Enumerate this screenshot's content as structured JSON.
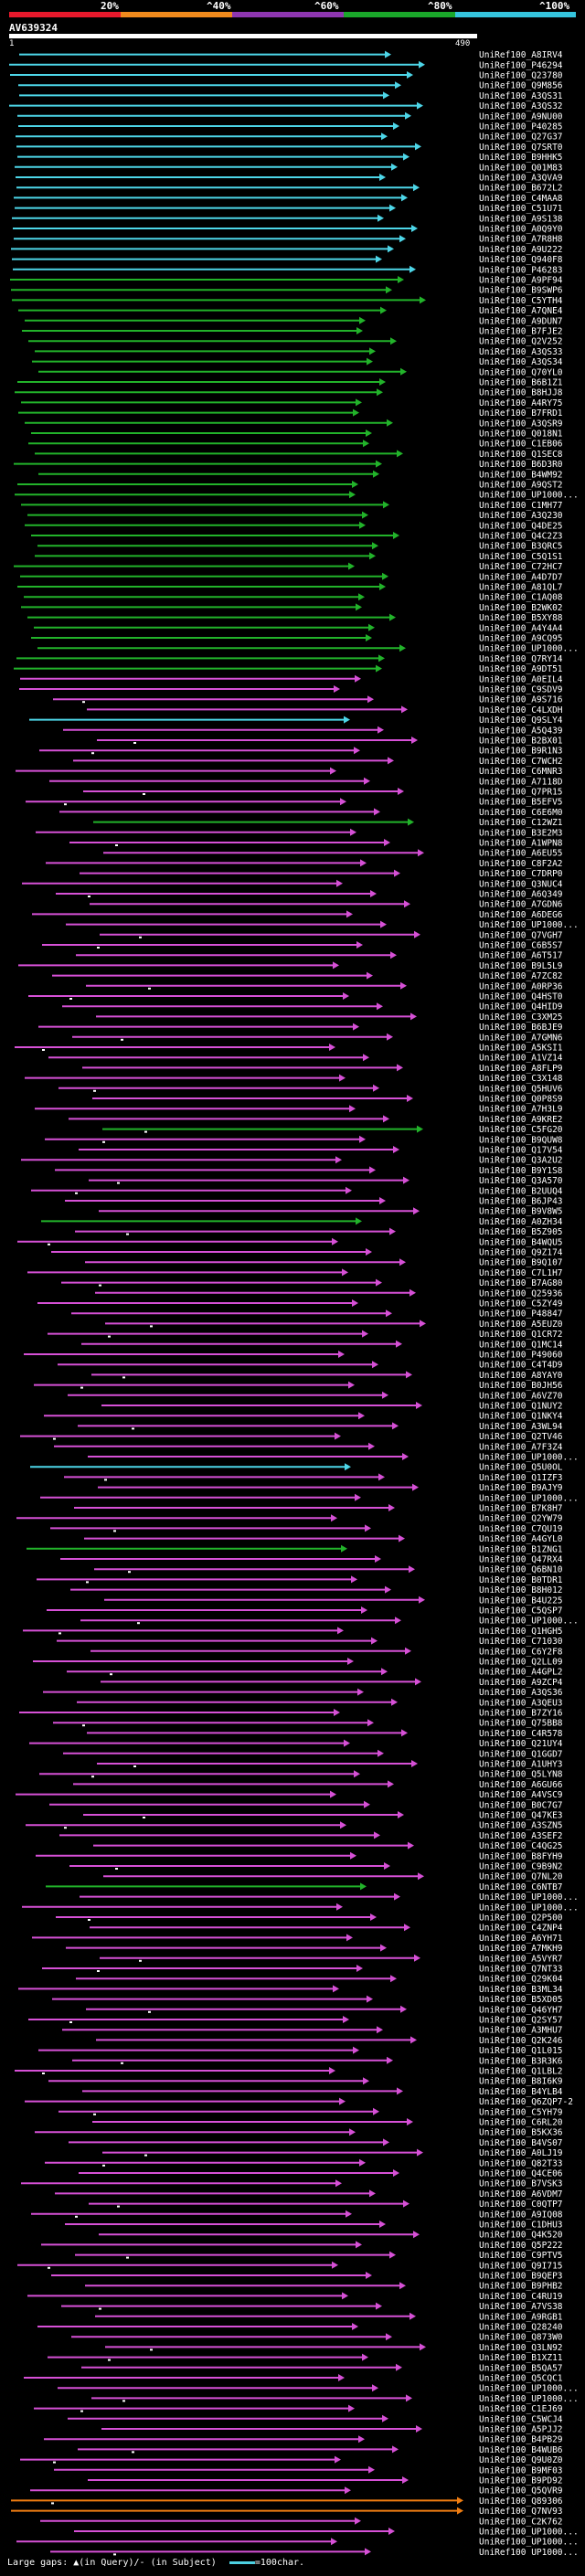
{
  "scale": {
    "labels": [
      "20%",
      "^40%",
      "^60%",
      "^80%",
      "^100%"
    ],
    "colors": [
      "#e8192c",
      "#f08a1c",
      "#8e36b0",
      "#1aa72a",
      "#35c4dd"
    ]
  },
  "query": {
    "name": "AV639324",
    "start": "1",
    "end": "490"
  },
  "colors": {
    "cyan": "#4dd6e8",
    "green": "#22b32a",
    "magenta": "#d650d6",
    "orange": "#ef7d12",
    "label": "#ffffff",
    "dot": "#ffffff"
  },
  "hits": [
    {
      "label": "UniRef100_A8IRV4",
      "color": "cyan"
    },
    {
      "label": "UniRef100_P46294",
      "color": "cyan"
    },
    {
      "label": "UniRef100_Q23780",
      "color": "cyan"
    },
    {
      "label": "UniRef100_Q9M856",
      "color": "cyan"
    },
    {
      "label": "UniRef100_A3QS31",
      "color": "cyan"
    },
    {
      "label": "UniRef100_A3QS32",
      "color": "cyan"
    },
    {
      "label": "UniRef100_A9NU00",
      "color": "cyan"
    },
    {
      "label": "UniRef100_P40285",
      "color": "cyan"
    },
    {
      "label": "UniRef100_Q27G37",
      "color": "cyan"
    },
    {
      "label": "UniRef100_Q7SRT0",
      "color": "cyan"
    },
    {
      "label": "UniRef100_B9HHK5",
      "color": "cyan"
    },
    {
      "label": "UniRef100_Q01M83",
      "color": "cyan"
    },
    {
      "label": "UniRef100_A3QVA9",
      "color": "cyan"
    },
    {
      "label": "UniRef100_B672L2",
      "color": "cyan"
    },
    {
      "label": "UniRef100_C4MAA8",
      "color": "cyan"
    },
    {
      "label": "UniRef100_C51U71",
      "color": "cyan"
    },
    {
      "label": "UniRef100_A9S138",
      "color": "cyan"
    },
    {
      "label": "UniRef100_A0Q9Y0",
      "color": "cyan"
    },
    {
      "label": "UniRef100_A7R8H8",
      "color": "cyan"
    },
    {
      "label": "UniRef100_A9U222",
      "color": "cyan"
    },
    {
      "label": "UniRef100_Q940F8",
      "color": "cyan"
    },
    {
      "label": "UniRef100_P46283",
      "color": "cyan"
    },
    {
      "label": "UniRef100_A9PF94",
      "color": "green"
    },
    {
      "label": "UniRef100_B9SWP6",
      "color": "green"
    },
    {
      "label": "UniRef100_C5YTH4",
      "color": "green"
    },
    {
      "label": "UniRef100_A7QNE4",
      "color": "green"
    },
    {
      "label": "UniRef100_A9DUN7",
      "color": "green"
    },
    {
      "label": "UniRef100_B7FJE2",
      "color": "green"
    },
    {
      "label": "UniRef100_Q2V252",
      "color": "green"
    },
    {
      "label": "UniRef100_A3QS33",
      "color": "green"
    },
    {
      "label": "UniRef100_A3QS34",
      "color": "green"
    },
    {
      "label": "UniRef100_Q70YL0",
      "color": "green"
    },
    {
      "label": "UniRef100_B6B1Z1",
      "color": "green"
    },
    {
      "label": "UniRef100_B8HJJ8",
      "color": "green"
    },
    {
      "label": "UniRef100_A4RY75",
      "color": "green"
    },
    {
      "label": "UniRef100_B7FRD1",
      "color": "green"
    },
    {
      "label": "UniRef100_A3QSR9",
      "color": "green"
    },
    {
      "label": "UniRef100_Q018N1",
      "color": "green"
    },
    {
      "label": "UniRef100_C1EB06",
      "color": "green"
    },
    {
      "label": "UniRef100_Q1SEC8",
      "color": "green"
    },
    {
      "label": "UniRef100_B6D3R0",
      "color": "green"
    },
    {
      "label": "UniRef100_B4WM92",
      "color": "green"
    },
    {
      "label": "UniRef100_A9QST2",
      "color": "green"
    },
    {
      "label": "UniRef100_UP1000...",
      "color": "green"
    },
    {
      "label": "UniRef100_C1MH77",
      "color": "green"
    },
    {
      "label": "UniRef100_A3Q230",
      "color": "green"
    },
    {
      "label": "UniRef100_Q4DE25",
      "color": "green"
    },
    {
      "label": "UniRef100_Q4C2Z3",
      "color": "green"
    },
    {
      "label": "UniRef100_B3QRC5",
      "color": "green"
    },
    {
      "label": "UniRef100_C5Q1S1",
      "color": "green"
    },
    {
      "label": "UniRef100_C72HC7",
      "color": "green"
    },
    {
      "label": "UniRef100_A4D7D7",
      "color": "green"
    },
    {
      "label": "UniRef100_A81QL7",
      "color": "green"
    },
    {
      "label": "UniRef100_C1AQ08",
      "color": "green"
    },
    {
      "label": "UniRef100_B2WK02",
      "color": "green"
    },
    {
      "label": "UniRef100_B5XY88",
      "color": "green"
    },
    {
      "label": "UniRef100_A4Y4A4",
      "color": "green"
    },
    {
      "label": "UniRef100_A9CQ95",
      "color": "green"
    },
    {
      "label": "UniRef100_UP1000...",
      "color": "green"
    },
    {
      "label": "UniRef100_Q7RY14",
      "color": "green"
    },
    {
      "label": "UniRef100_A9DT51",
      "color": "green"
    },
    {
      "label": "UniRef100_A0EIL4",
      "color": "magenta"
    },
    {
      "label": "UniRef100_C9SDV9",
      "color": "magenta"
    },
    {
      "label": "UniRef100_A9S716",
      "color": "magenta"
    },
    {
      "label": "UniRef100_C4LXDH",
      "color": "magenta"
    },
    {
      "label": "UniRef100_Q9SLY4",
      "color": "cyan"
    },
    {
      "label": "UniRef100_A5Q439",
      "color": "magenta"
    },
    {
      "label": "UniRef100_B2BX01",
      "color": "magenta"
    },
    {
      "label": "UniRef100_B9R1N3",
      "color": "magenta"
    },
    {
      "label": "UniRef100_C7WCH2",
      "color": "magenta"
    },
    {
      "label": "UniRef100_C6MNR3",
      "color": "magenta"
    },
    {
      "label": "UniRef100_A7118D",
      "color": "magenta"
    },
    {
      "label": "UniRef100_Q7PR15",
      "color": "magenta"
    },
    {
      "label": "UniRef100_B5EFV5",
      "color": "magenta"
    },
    {
      "label": "UniRef100_C6E6M0",
      "color": "magenta"
    },
    {
      "label": "UniRef100_C12WZ1",
      "color": "green"
    },
    {
      "label": "UniRef100_B3E2M3",
      "color": "magenta"
    },
    {
      "label": "UniRef100_A1WPN8",
      "color": "magenta"
    },
    {
      "label": "UniRef100_A6EU55",
      "color": "magenta"
    },
    {
      "label": "UniRef100_C8F2A2",
      "color": "magenta"
    },
    {
      "label": "UniRef100_C7DRP0",
      "color": "magenta"
    },
    {
      "label": "UniRef100_Q3NUC4",
      "color": "magenta"
    },
    {
      "label": "UniRef100_A6Q349",
      "color": "magenta"
    },
    {
      "label": "UniRef100_A7GDN6",
      "color": "magenta"
    },
    {
      "label": "UniRef100_A6DEG6",
      "color": "magenta"
    },
    {
      "label": "UniRef100_UP1000...",
      "color": "magenta"
    },
    {
      "label": "UniRef100_Q7VGH7",
      "color": "magenta"
    },
    {
      "label": "UniRef100_C6B5S7",
      "color": "magenta"
    },
    {
      "label": "UniRef100_A6T517",
      "color": "magenta"
    },
    {
      "label": "UniRef100_B9L5L9",
      "color": "magenta"
    },
    {
      "label": "UniRef100_A7ZC82",
      "color": "magenta"
    },
    {
      "label": "UniRef100_A0RP36",
      "color": "magenta"
    },
    {
      "label": "UniRef100_Q4HST0",
      "color": "magenta"
    },
    {
      "label": "UniRef100_Q4HID9",
      "color": "magenta"
    },
    {
      "label": "UniRef100_C3XM25",
      "color": "magenta"
    },
    {
      "label": "UniRef100_B6BJE9",
      "color": "magenta"
    },
    {
      "label": "UniRef100_A7GMN6",
      "color": "magenta"
    },
    {
      "label": "UniRef100_A5KSI1",
      "color": "magenta"
    },
    {
      "label": "UniRef100_A1VZ14",
      "color": "magenta"
    },
    {
      "label": "UniRef100_A8FLP9",
      "color": "magenta"
    },
    {
      "label": "UniRef100_C3X148",
      "color": "magenta"
    },
    {
      "label": "UniRef100_Q5HUV6",
      "color": "magenta"
    },
    {
      "label": "UniRef100_Q0P8S9",
      "color": "magenta"
    },
    {
      "label": "UniRef100_A7H3L9",
      "color": "magenta"
    },
    {
      "label": "UniRef100_A9KRE2",
      "color": "magenta"
    },
    {
      "label": "UniRef100_C5FG20",
      "color": "green"
    },
    {
      "label": "UniRef100_B9QUW8",
      "color": "magenta"
    },
    {
      "label": "UniRef100_Q17V54",
      "color": "magenta"
    },
    {
      "label": "UniRef100_Q3A2U2",
      "color": "magenta"
    },
    {
      "label": "UniRef100_B9Y1S8",
      "color": "magenta"
    },
    {
      "label": "UniRef100_Q3A570",
      "color": "magenta"
    },
    {
      "label": "UniRef100_B2UUQ4",
      "color": "magenta"
    },
    {
      "label": "UniRef100_B6JP43",
      "color": "magenta"
    },
    {
      "label": "UniRef100_B9V8W5",
      "color": "magenta"
    },
    {
      "label": "UniRef100_A0ZH34",
      "color": "green"
    },
    {
      "label": "UniRef100_B5Z905",
      "color": "magenta"
    },
    {
      "label": "UniRef100_B4WQU5",
      "color": "magenta"
    },
    {
      "label": "UniRef100_Q9Z174",
      "color": "magenta"
    },
    {
      "label": "UniRef100_B9Q107",
      "color": "magenta"
    },
    {
      "label": "UniRef100_C7L1H7",
      "color": "magenta"
    },
    {
      "label": "UniRef100_B7AG80",
      "color": "magenta"
    },
    {
      "label": "UniRef100_Q25936",
      "color": "magenta"
    },
    {
      "label": "UniRef100_C5ZY49",
      "color": "magenta"
    },
    {
      "label": "UniRef100_P48847",
      "color": "magenta"
    },
    {
      "label": "UniRef100_A5EUZ0",
      "color": "magenta"
    },
    {
      "label": "UniRef100_Q1CR72",
      "color": "magenta"
    },
    {
      "label": "UniRef100_Q1MC14",
      "color": "magenta"
    },
    {
      "label": "UniRef100_P49060",
      "color": "magenta"
    },
    {
      "label": "UniRef100_C4T4D9",
      "color": "magenta"
    },
    {
      "label": "UniRef100_A8YAY0",
      "color": "magenta"
    },
    {
      "label": "UniRef100_B0JH56",
      "color": "magenta"
    },
    {
      "label": "UniRef100_A6VZ70",
      "color": "magenta"
    },
    {
      "label": "UniRef100_Q1NUY2",
      "color": "magenta"
    },
    {
      "label": "UniRef100_Q1NKY4",
      "color": "magenta"
    },
    {
      "label": "UniRef100_A3WL94",
      "color": "magenta"
    },
    {
      "label": "UniRef100_Q2TV46",
      "color": "magenta"
    },
    {
      "label": "UniRef100_A7F3Z4",
      "color": "magenta"
    },
    {
      "label": "UniRef100_UP1000...",
      "color": "magenta"
    },
    {
      "label": "UniRef100_Q5U0OL",
      "color": "cyan"
    },
    {
      "label": "UniRef100_Q1IZF3",
      "color": "magenta"
    },
    {
      "label": "UniRef100_B9AJY9",
      "color": "magenta"
    },
    {
      "label": "UniRef100_UP1000...",
      "color": "magenta"
    },
    {
      "label": "UniRef100_B7K8H7",
      "color": "magenta"
    },
    {
      "label": "UniRef100_Q2YW79",
      "color": "magenta"
    },
    {
      "label": "UniRef100_C7QU19",
      "color": "magenta"
    },
    {
      "label": "UniRef100_A4GYL0",
      "color": "magenta"
    },
    {
      "label": "UniRef100_B1ZNG1",
      "color": "green"
    },
    {
      "label": "UniRef100_Q47RX4",
      "color": "magenta"
    },
    {
      "label": "UniRef100_Q6BN10",
      "color": "magenta"
    },
    {
      "label": "UniRef100_B0TDR1",
      "color": "magenta"
    },
    {
      "label": "UniRef100_B8H012",
      "color": "magenta"
    },
    {
      "label": "UniRef100_B4U225",
      "color": "magenta"
    },
    {
      "label": "UniRef100_C5QSP7",
      "color": "magenta"
    },
    {
      "label": "UniRef100_UP1000...",
      "color": "magenta"
    },
    {
      "label": "UniRef100_Q1HGH5",
      "color": "magenta"
    },
    {
      "label": "UniRef100_C71030",
      "color": "magenta"
    },
    {
      "label": "UniRef100_C6Y2F8",
      "color": "magenta"
    },
    {
      "label": "UniRef100_Q2LL09",
      "color": "magenta"
    },
    {
      "label": "UniRef100_A4GPL2",
      "color": "magenta"
    },
    {
      "label": "UniRef100_A9ZCP4",
      "color": "magenta"
    },
    {
      "label": "UniRef100_A3QS36",
      "color": "magenta"
    },
    {
      "label": "UniRef100_A3QEU3",
      "color": "magenta"
    },
    {
      "label": "UniRef100_B7ZY16",
      "color": "magenta"
    },
    {
      "label": "UniRef100_Q75BB8",
      "color": "magenta"
    },
    {
      "label": "UniRef100_C4R578",
      "color": "magenta"
    },
    {
      "label": "UniRef100_Q21UY4",
      "color": "magenta"
    },
    {
      "label": "UniRef100_Q1GGD7",
      "color": "magenta"
    },
    {
      "label": "UniRef100_A1UHY3",
      "color": "magenta"
    },
    {
      "label": "UniRef100_Q5LYN8",
      "color": "magenta"
    },
    {
      "label": "UniRef100_A6GU66",
      "color": "magenta"
    },
    {
      "label": "UniRef100_A4VSC9",
      "color": "magenta"
    },
    {
      "label": "UniRef100_B0C7G7",
      "color": "magenta"
    },
    {
      "label": "UniRef100_Q47KE3",
      "color": "magenta"
    },
    {
      "label": "UniRef100_A3SZN5",
      "color": "magenta"
    },
    {
      "label": "UniRef100_A3SEF2",
      "color": "magenta"
    },
    {
      "label": "UniRef100_C4QG25",
      "color": "magenta"
    },
    {
      "label": "UniRef100_B8FYH9",
      "color": "magenta"
    },
    {
      "label": "UniRef100_C9B9N2",
      "color": "magenta"
    },
    {
      "label": "UniRef100_Q7NL20",
      "color": "magenta"
    },
    {
      "label": "UniRef100_C6NTB7",
      "color": "green"
    },
    {
      "label": "UniRef100_UP1000...",
      "color": "magenta"
    },
    {
      "label": "UniRef100_UP1000...",
      "color": "magenta"
    },
    {
      "label": "UniRef100_Q2P500",
      "color": "magenta"
    },
    {
      "label": "UniRef100_C4ZNP4",
      "color": "magenta"
    },
    {
      "label": "UniRef100_A6YH71",
      "color": "magenta"
    },
    {
      "label": "UniRef100_A7MKH9",
      "color": "magenta"
    },
    {
      "label": "UniRef100_A5VYR7",
      "color": "magenta"
    },
    {
      "label": "UniRef100_Q7NT33",
      "color": "magenta"
    },
    {
      "label": "UniRef100_Q29K04",
      "color": "magenta"
    },
    {
      "label": "UniRef100_B3ML34",
      "color": "magenta"
    },
    {
      "label": "UniRef100_B5XD05",
      "color": "magenta"
    },
    {
      "label": "UniRef100_Q46YH7",
      "color": "magenta"
    },
    {
      "label": "UniRef100_Q2SY57",
      "color": "magenta"
    },
    {
      "label": "UniRef100_A3MHU7",
      "color": "magenta"
    },
    {
      "label": "UniRef100_Q2K246",
      "color": "magenta"
    },
    {
      "label": "UniRef100_Q1L015",
      "color": "magenta"
    },
    {
      "label": "UniRef100_B3R3K6",
      "color": "magenta"
    },
    {
      "label": "UniRef100_Q1LBL2",
      "color": "magenta"
    },
    {
      "label": "UniRef100_B8I6K9",
      "color": "magenta"
    },
    {
      "label": "UniRef100_B4YLB4",
      "color": "magenta"
    },
    {
      "label": "UniRef100_Q6ZQP7-2",
      "color": "magenta"
    },
    {
      "label": "UniRef100_C5YH79",
      "color": "magenta"
    },
    {
      "label": "UniRef100_C6RL20",
      "color": "magenta"
    },
    {
      "label": "UniRef100_B5KX36",
      "color": "magenta"
    },
    {
      "label": "UniRef100_B4VS07",
      "color": "magenta"
    },
    {
      "label": "UniRef100_A0LJ19",
      "color": "magenta"
    },
    {
      "label": "UniRef100_Q82T33",
      "color": "magenta"
    },
    {
      "label": "UniRef100_Q4CE06",
      "color": "magenta"
    },
    {
      "label": "UniRef100_B7VSK3",
      "color": "magenta"
    },
    {
      "label": "UniRef100_A6VDM7",
      "color": "magenta"
    },
    {
      "label": "UniRef100_C0QTP7",
      "color": "magenta"
    },
    {
      "label": "UniRef100_A9IQ08",
      "color": "magenta"
    },
    {
      "label": "UniRef100_C1DHU3",
      "color": "magenta"
    },
    {
      "label": "UniRef100_Q4K520",
      "color": "magenta"
    },
    {
      "label": "UniRef100_Q5P222",
      "color": "magenta"
    },
    {
      "label": "UniRef100_C9PTV5",
      "color": "magenta"
    },
    {
      "label": "UniRef100_Q9I715",
      "color": "magenta"
    },
    {
      "label": "UniRef100_B9QEP3",
      "color": "magenta"
    },
    {
      "label": "UniRef100_B9PHB2",
      "color": "magenta"
    },
    {
      "label": "UniRef100_C4RU19",
      "color": "magenta"
    },
    {
      "label": "UniRef100_A7VS38",
      "color": "magenta"
    },
    {
      "label": "UniRef100_A9RGB1",
      "color": "magenta"
    },
    {
      "label": "UniRef100_Q28240",
      "color": "magenta"
    },
    {
      "label": "UniRef100_Q873W0",
      "color": "magenta"
    },
    {
      "label": "UniRef100_Q3LN92",
      "color": "magenta"
    },
    {
      "label": "UniRef100_B1XZ11",
      "color": "magenta"
    },
    {
      "label": "UniRef100_B5QA57",
      "color": "magenta"
    },
    {
      "label": "UniRef100_Q5CQC1",
      "color": "magenta"
    },
    {
      "label": "UniRef100_UP1000...",
      "color": "magenta"
    },
    {
      "label": "UniRef100_UP1000...",
      "color": "magenta"
    },
    {
      "label": "UniRef100_C1EJ69",
      "color": "magenta"
    },
    {
      "label": "UniRef100_C5WCJ4",
      "color": "magenta"
    },
    {
      "label": "UniRef100_A5PJJ2",
      "color": "magenta"
    },
    {
      "label": "UniRef100_B4PB29",
      "color": "magenta"
    },
    {
      "label": "UniRef100_B4WUB6",
      "color": "magenta"
    },
    {
      "label": "UniRef100_Q9U0Z0",
      "color": "magenta"
    },
    {
      "label": "UniRef100_B9MF03",
      "color": "magenta"
    },
    {
      "label": "UniRef100_B9PD92",
      "color": "magenta"
    },
    {
      "label": "UniRef100_Q5QVR9",
      "color": "magenta"
    },
    {
      "label": "UniRef100_Q89306",
      "color": "orange"
    },
    {
      "label": "UniRef100_Q7NV93",
      "color": "orange"
    },
    {
      "label": "UniRef100_C2K762",
      "color": "magenta"
    },
    {
      "label": "UniRef100_UP1000...",
      "color": "magenta"
    },
    {
      "label": "UniRef100_UP1000...",
      "color": "magenta"
    },
    {
      "label": "UniRef100_UP1000...",
      "color": "magenta"
    }
  ],
  "footer": {
    "gaps_label": "Large gaps: ",
    "gap_query_symbol": "▲",
    "gap_query_text": "(in Query)/",
    "gap_subject_symbol": "-",
    "gap_subject_text": " (in Subject)",
    "scale_label": "=100char."
  }
}
